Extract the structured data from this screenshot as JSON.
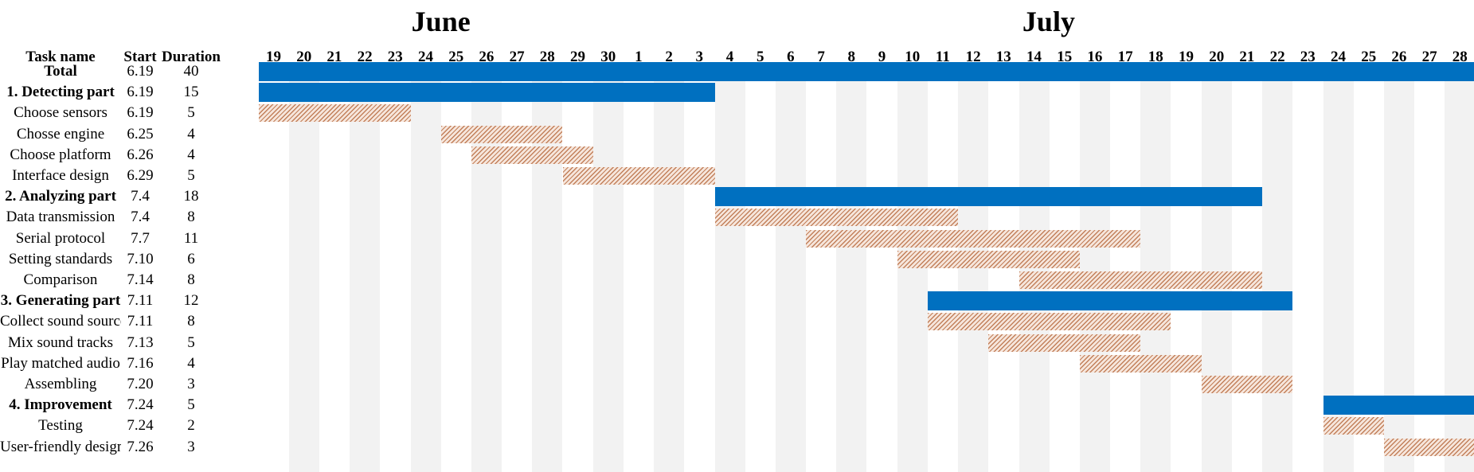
{
  "columns": {
    "name": "Task name",
    "start": "Start",
    "duration": "Duration"
  },
  "months": [
    {
      "label": "June",
      "days": [
        "19",
        "20",
        "21",
        "22",
        "23",
        "24",
        "25",
        "26",
        "27",
        "28",
        "29",
        "30"
      ]
    },
    {
      "label": "July",
      "days": [
        "1",
        "2",
        "3",
        "4",
        "5",
        "6",
        "7",
        "8",
        "9",
        "10",
        "11",
        "12",
        "13",
        "14",
        "15",
        "16",
        "17",
        "18",
        "19",
        "20",
        "21",
        "22",
        "23",
        "24",
        "25",
        "26",
        "27",
        "28"
      ]
    }
  ],
  "colors": {
    "summary_bar": "#0070c0",
    "task_hatch": "#bf7b54",
    "shaded_column": "#f2f2f2"
  },
  "chart_data": {
    "type": "gantt",
    "timeline_start": "6.19",
    "timeline_end_visible": "7.28",
    "tasks": [
      {
        "name": "Total",
        "start": "6.19",
        "duration": "40",
        "level": "summary"
      },
      {
        "name": "1. Detecting part",
        "start": "6.19",
        "duration": "15",
        "level": "summary"
      },
      {
        "name": "Choose sensors",
        "start": "6.19",
        "duration": "5",
        "level": "task"
      },
      {
        "name": "Chosse engine",
        "start": "6.25",
        "duration": "4",
        "level": "task"
      },
      {
        "name": "Choose platform",
        "start": "6.26",
        "duration": "4",
        "level": "task"
      },
      {
        "name": "Interface design",
        "start": "6.29",
        "duration": "5",
        "level": "task"
      },
      {
        "name": "2. Analyzing part",
        "start": "7.4",
        "duration": "18",
        "level": "summary"
      },
      {
        "name": "Data transmission",
        "start": "7.4",
        "duration": "8",
        "level": "task"
      },
      {
        "name": "Serial protocol",
        "start": "7.7",
        "duration": "11",
        "level": "task"
      },
      {
        "name": "Setting standards",
        "start": "7.10",
        "duration": "6",
        "level": "task"
      },
      {
        "name": "Comparison",
        "start": "7.14",
        "duration": "8",
        "level": "task"
      },
      {
        "name": "3. Generating part",
        "start": "7.11",
        "duration": "12",
        "level": "summary"
      },
      {
        "name": "Collect sound sources",
        "start": "7.11",
        "duration": "8",
        "level": "task"
      },
      {
        "name": "Mix sound tracks",
        "start": "7.13",
        "duration": "5",
        "level": "task"
      },
      {
        "name": "Play matched audio",
        "start": "7.16",
        "duration": "4",
        "level": "task"
      },
      {
        "name": "Assembling",
        "start": "7.20",
        "duration": "3",
        "level": "task"
      },
      {
        "name": "4. Improvement",
        "start": "7.24",
        "duration": "5",
        "level": "summary"
      },
      {
        "name": "Testing",
        "start": "7.24",
        "duration": "2",
        "level": "task"
      },
      {
        "name": "User-friendly design",
        "start": "7.26",
        "duration": "3",
        "level": "task"
      }
    ]
  }
}
